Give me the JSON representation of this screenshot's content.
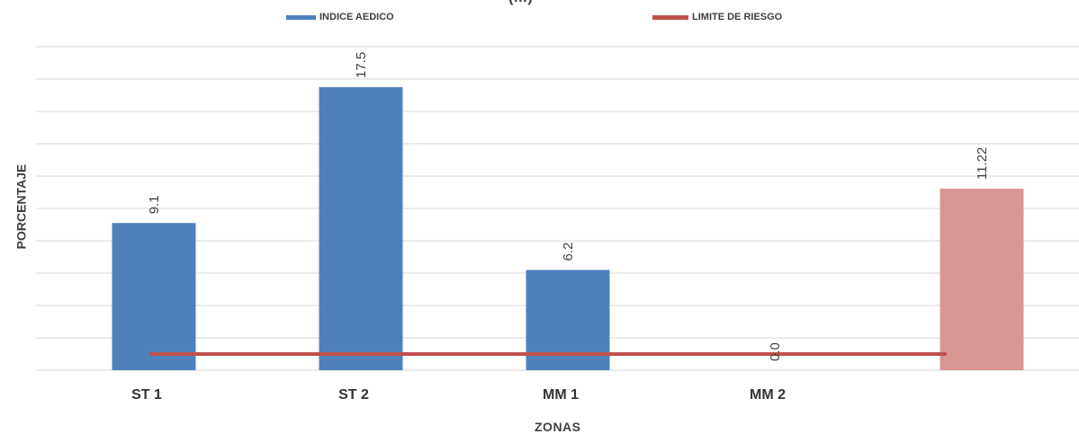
{
  "chart_data": {
    "type": "bar",
    "title": "(…)",
    "xlabel": "ZONAS",
    "ylabel": "PORCENTAJE",
    "categories": [
      "ST 1",
      "ST 2",
      "MM 1",
      "MM 2",
      ""
    ],
    "series": [
      {
        "name": "INDICE AEDICO",
        "type": "bar",
        "values": [
          9.1,
          17.5,
          6.2,
          0.0,
          11.22
        ],
        "value_labels": [
          "9.1",
          "17.5",
          "6.2",
          "0.0",
          "11.22"
        ],
        "color": "#4F81BD",
        "highlight": {
          "index": 4,
          "color": "#D99594"
        }
      },
      {
        "name": "LIMITE DE RIESGO",
        "type": "line",
        "values": [
          1,
          1,
          1,
          1,
          1
        ],
        "color": "#C0504D"
      }
    ],
    "ylim": [
      0,
      20
    ],
    "grid": true,
    "legend": "top"
  }
}
